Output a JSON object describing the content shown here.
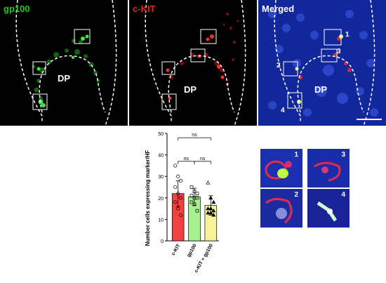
{
  "panels": [
    {
      "label": "gp100",
      "label_color": "#1ec81e",
      "region_label": "DP"
    },
    {
      "label": "c-KIT",
      "label_color": "#e8242c",
      "region_label": "DP"
    },
    {
      "label": "Merged",
      "label_color": "#ffffff",
      "region_label": "DP",
      "box_numbers": [
        "1",
        "2",
        "3",
        "4"
      ]
    }
  ],
  "insets": [
    {
      "number": "1"
    },
    {
      "number": "3"
    },
    {
      "number": "2"
    },
    {
      "number": "4"
    }
  ],
  "chart_data": {
    "type": "bar",
    "ylabel": "Number cells expressing marker/HF",
    "ylim": [
      0,
      50
    ],
    "yticks": [
      "0",
      "10",
      "20",
      "30",
      "40",
      "50"
    ],
    "categories": [
      "c-KIT",
      "gp100",
      "c-KIT + gp100"
    ],
    "values": [
      22,
      20.5,
      16.5
    ],
    "errors": [
      6,
      4,
      4.5
    ],
    "colors": [
      "#f24141",
      "#a6f08f",
      "#f6f39a"
    ],
    "point_markers": [
      "circle",
      "square",
      "triangle"
    ],
    "points": [
      [
        35,
        30,
        28,
        25,
        22,
        20,
        18,
        15,
        12
      ],
      [
        25,
        23,
        22,
        21,
        20,
        20,
        18,
        17,
        14
      ],
      [
        27,
        20,
        18,
        15,
        15,
        14,
        13,
        13,
        12
      ]
    ],
    "significance": [
      {
        "from": 0,
        "to": 2,
        "label": "ns"
      },
      {
        "from": 0,
        "to": 1,
        "label": "ns"
      },
      {
        "from": 1,
        "to": 2,
        "label": "ns"
      }
    ]
  }
}
